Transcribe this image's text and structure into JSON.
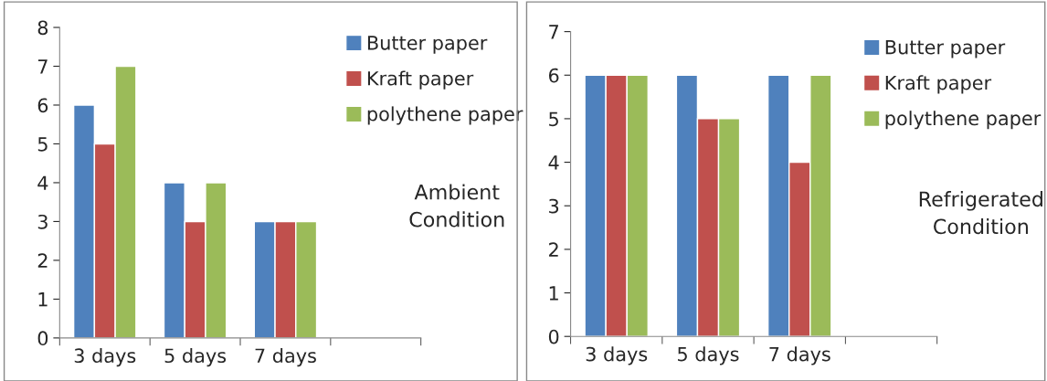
{
  "chart_data": [
    {
      "type": "bar",
      "categories": [
        "3 days",
        "5 days",
        "7 days",
        null
      ],
      "ylim": [
        0,
        8
      ],
      "yticks": [
        0,
        1,
        2,
        3,
        4,
        5,
        6,
        7,
        8
      ],
      "legend": "top right",
      "grid": false,
      "series": [
        {
          "name": "Butter paper",
          "color": "#4f81bd",
          "values": [
            6,
            4,
            3,
            null
          ]
        },
        {
          "name": "Kraft paper",
          "color": "#c0504d",
          "values": [
            5,
            3,
            3,
            null
          ]
        },
        {
          "name": "polythene paper",
          "color": "#9bbb59",
          "values": [
            7,
            4,
            3,
            null
          ]
        }
      ],
      "annotations": [
        "Ambient Condition"
      ]
    },
    {
      "type": "bar",
      "categories": [
        "3 days",
        "5 days",
        "7 days",
        null
      ],
      "ylim": [
        0,
        7
      ],
      "yticks": [
        0,
        1,
        2,
        3,
        4,
        5,
        6,
        7
      ],
      "legend": "top right",
      "grid": false,
      "series": [
        {
          "name": "Butter paper",
          "color": "#4f81bd",
          "values": [
            6,
            6,
            6,
            null
          ]
        },
        {
          "name": "Kraft paper",
          "color": "#c0504d",
          "values": [
            6,
            5,
            4,
            null
          ]
        },
        {
          "name": "polythene paper",
          "color": "#9bbb59",
          "values": [
            6,
            5,
            6,
            null
          ]
        }
      ],
      "annotations": [
        "Refrigerated Condition"
      ]
    }
  ]
}
